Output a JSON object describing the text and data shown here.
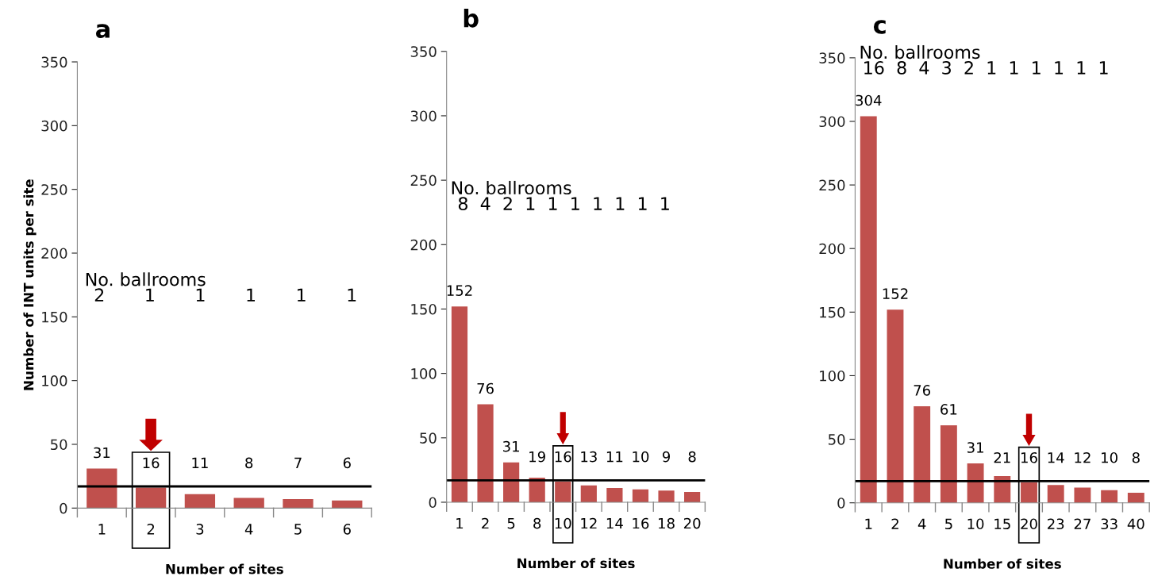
{
  "chart_data": [
    {
      "type": "bar",
      "title": "a",
      "ylabel": "Number of INT units per site",
      "xlabel": "Number of sites",
      "categories": [
        "1",
        "2",
        "3",
        "4",
        "5",
        "6"
      ],
      "values": [
        31,
        16,
        11,
        8,
        7,
        6
      ],
      "color": "#c0504d",
      "data_labels": true,
      "ylim": [
        0,
        350
      ],
      "yticks": [
        0,
        50,
        100,
        150,
        200,
        250,
        300,
        350
      ],
      "ref_lines": [
        {
          "axis": "y",
          "value": 17,
          "color": "#000000"
        }
      ],
      "annotations": [
        "No. ballrooms",
        "2 1 1 1 1 1"
      ]
    },
    {
      "type": "bar",
      "title": "b",
      "xlabel": "Number of sites",
      "categories": [
        "1",
        "2",
        "5",
        "8",
        "10",
        "12",
        "14",
        "16",
        "18",
        "20"
      ],
      "values": [
        152,
        76,
        31,
        19,
        16,
        13,
        11,
        10,
        9,
        8
      ],
      "color": "#c0504d",
      "data_labels": true,
      "ylim": [
        0,
        350
      ],
      "yticks": [
        0,
        50,
        100,
        150,
        200,
        250,
        300,
        350
      ],
      "ref_lines": [
        {
          "axis": "y",
          "value": 17,
          "color": "#000000"
        }
      ],
      "annotations": [
        "No. ballrooms",
        "8 4 2 1 1 1 1 1 1 1"
      ]
    },
    {
      "type": "bar",
      "title": "c",
      "xlabel": "Number of sites",
      "categories": [
        "1",
        "2",
        "4",
        "5",
        "10",
        "15",
        "20",
        "23",
        "27",
        "33",
        "40"
      ],
      "values": [
        304,
        152,
        76,
        61,
        31,
        21,
        16,
        14,
        12,
        10,
        8
      ],
      "color": "#c0504d",
      "data_labels": true,
      "ylim": [
        0,
        350
      ],
      "yticks": [
        0,
        50,
        100,
        150,
        200,
        250,
        300,
        350
      ],
      "ref_lines": [
        {
          "axis": "y",
          "value": 17,
          "color": "#000000"
        }
      ],
      "annotations": [
        "No. ballrooms",
        "16 8 4 3 2 1 1 1 1 1 1"
      ]
    }
  ]
}
